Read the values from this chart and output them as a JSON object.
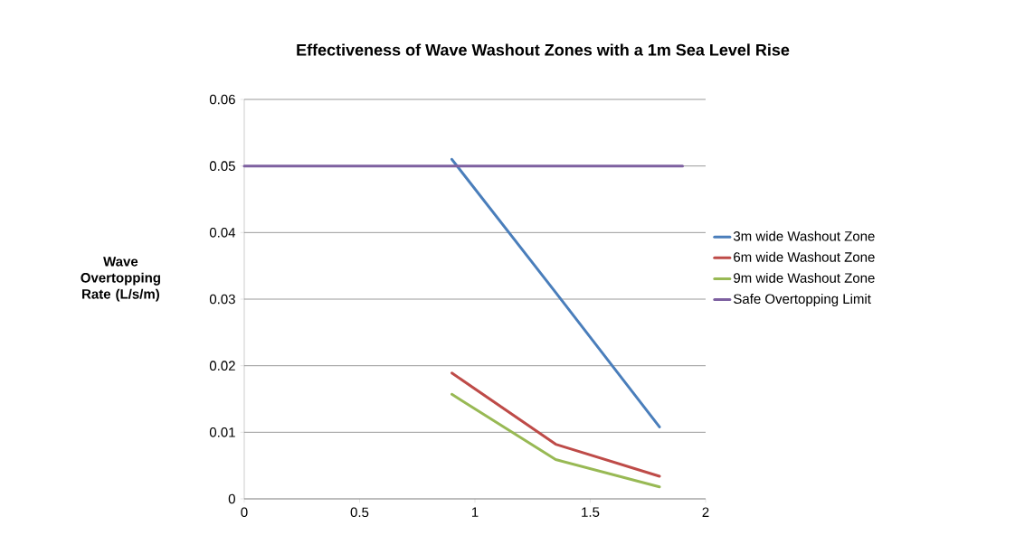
{
  "chart_data": {
    "type": "line",
    "title": "Effectiveness of Wave Washout Zones with  a 1m Sea Level Rise",
    "ylabel": "Wave Overtopping Rate (L/s/m)",
    "xlim": [
      0,
      2
    ],
    "xticks": [
      0,
      0.5,
      1,
      1.5,
      2
    ],
    "ylim": [
      0,
      0.06
    ],
    "yticks": [
      0,
      0.01,
      0.02,
      0.03,
      0.04,
      0.05,
      0.06
    ],
    "grid": "y",
    "legend": "right",
    "marker": "none",
    "line_style": "solid",
    "series": [
      {
        "name": "3m wide Washout Zone",
        "color": "#4a7ebb",
        "x": [
          0.9,
          1.35,
          1.8
        ],
        "values": [
          0.051,
          0.031,
          0.0108
        ]
      },
      {
        "name": "6m wide Washout Zone",
        "color": "#be4b48",
        "x": [
          0.9,
          1.35,
          1.8
        ],
        "values": [
          0.0189,
          0.0082,
          0.0034
        ]
      },
      {
        "name": "9m wide Washout Zone",
        "color": "#98b954",
        "x": [
          0.9,
          1.35,
          1.8
        ],
        "values": [
          0.0157,
          0.0059,
          0.0018
        ]
      },
      {
        "name": "Safe Overtopping Limit",
        "color": "#7d60a0",
        "x": [
          0,
          1.9
        ],
        "values": [
          0.05,
          0.05
        ]
      }
    ]
  }
}
